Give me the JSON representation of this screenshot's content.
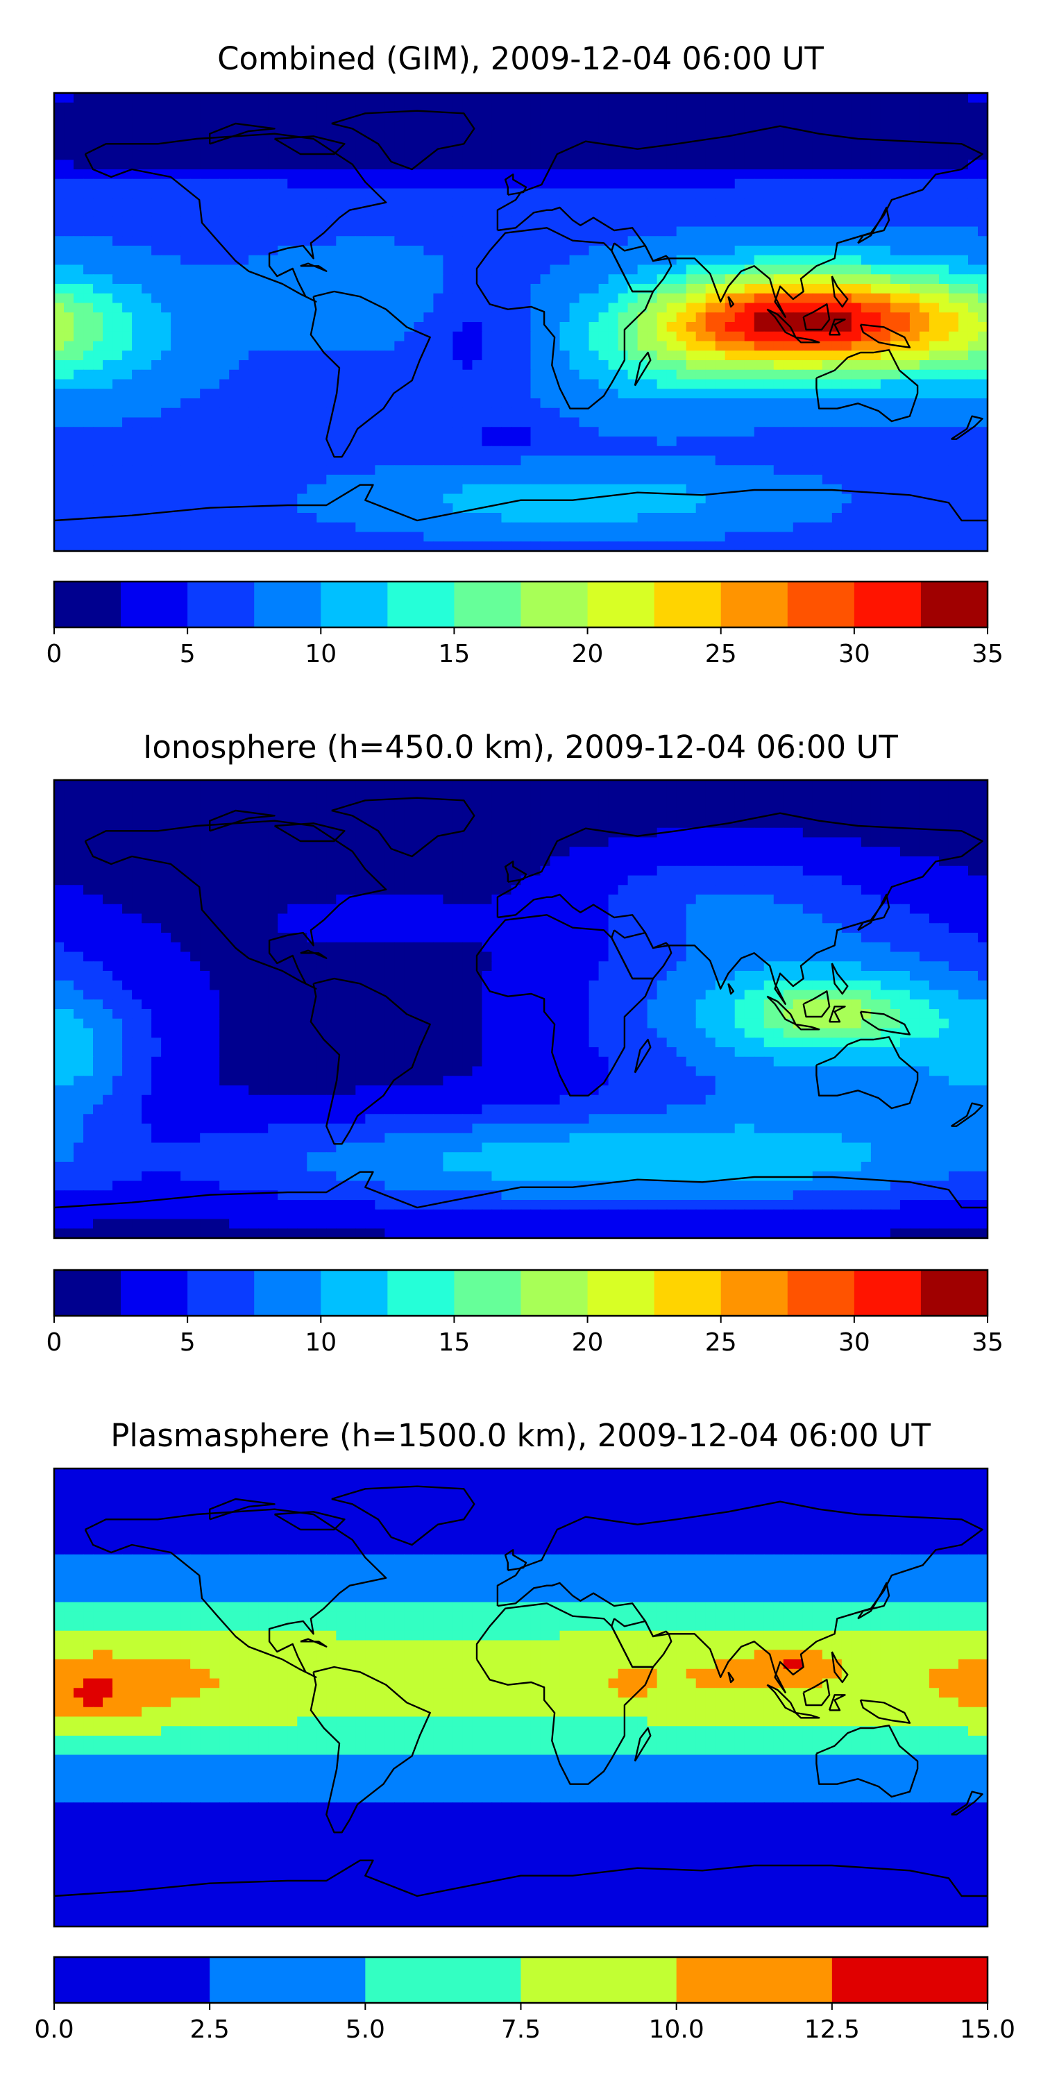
{
  "chart_data": [
    {
      "type": "heatmap",
      "title": "Combined (GIM), 2009-12-04 06:00 UT",
      "colorbar": {
        "levels": [
          0,
          2.5,
          5,
          7.5,
          10,
          12.5,
          15,
          17.5,
          20,
          22.5,
          25,
          27.5,
          30,
          32.5,
          35
        ],
        "tick_values": [
          0,
          5,
          10,
          15,
          20,
          25,
          30,
          35
        ],
        "tick_labels": [
          "0",
          "5",
          "10",
          "15",
          "20",
          "25",
          "30",
          "35"
        ],
        "colors": [
          "#00008f",
          "#0000f2",
          "#0a3cff",
          "#0080ff",
          "#00c0ff",
          "#25ffd8",
          "#66ff99",
          "#a8ff57",
          "#d8ff25",
          "#ffd400",
          "#ff9400",
          "#ff5300",
          "#ff1400",
          "#a00000"
        ]
      },
      "field": {
        "background": 7,
        "blobs": [
          {
            "lon": 122,
            "lat": 0,
            "slon": 38,
            "slat": 14,
            "amp": 22
          },
          {
            "lon": 85,
            "lat": 2,
            "slon": 30,
            "slat": 13,
            "amp": 8
          },
          {
            "lon": 55,
            "lat": -10,
            "slon": 28,
            "slat": 16,
            "amp": 6
          },
          {
            "lon": -175,
            "lat": -5,
            "slon": 30,
            "slat": 16,
            "amp": 6
          },
          {
            "lon": -60,
            "lat": 10,
            "slon": 28,
            "slat": 12,
            "amp": 3
          },
          {
            "lon": -20,
            "lat": -5,
            "slon": 14,
            "slat": 16,
            "amp": -3
          },
          {
            "lon": 20,
            "lat": -70,
            "slon": 50,
            "slat": 8,
            "amp": 5
          },
          {
            "lon": -5,
            "lat": -45,
            "slon": 10,
            "slat": 4,
            "amp": -4
          },
          {
            "lon": 0,
            "lat": 75,
            "slon": 400,
            "slat": 12,
            "amp": -9
          }
        ]
      }
    },
    {
      "type": "heatmap",
      "title": "Ionosphere  (h=450.0 km), 2009-12-04 06:00 UT",
      "colorbar": {
        "levels": [
          0,
          2.5,
          5,
          7.5,
          10,
          12.5,
          15,
          17.5,
          20,
          22.5,
          25,
          27.5,
          30,
          32.5,
          35
        ],
        "tick_values": [
          0,
          5,
          10,
          15,
          20,
          25,
          30,
          35
        ],
        "tick_labels": [
          "0",
          "5",
          "10",
          "15",
          "20",
          "25",
          "30",
          "35"
        ],
        "colors": [
          "#00008f",
          "#0000f2",
          "#0a3cff",
          "#0080ff",
          "#00c0ff",
          "#25ffd8",
          "#66ff99",
          "#a8ff57",
          "#d8ff25",
          "#ffd400",
          "#ff9400",
          "#ff5300",
          "#ff1400",
          "#a00000"
        ]
      },
      "field": {
        "background": 1.5,
        "blobs": [
          {
            "lon": 112,
            "lat": -2,
            "slon": 60,
            "slat": 28,
            "amp": 10
          },
          {
            "lon": 120,
            "lat": -2,
            "slon": 24,
            "slat": 9,
            "amp": 8
          },
          {
            "lon": 40,
            "lat": -60,
            "slon": 120,
            "slat": 14,
            "amp": 10
          },
          {
            "lon": 75,
            "lat": 45,
            "slon": 40,
            "slat": 14,
            "amp": 4
          },
          {
            "lon": -175,
            "lat": -20,
            "slon": 22,
            "slat": 18,
            "amp": 6
          },
          {
            "lon": -55,
            "lat": 35,
            "slon": 25,
            "slat": 6,
            "amp": 3
          }
        ]
      }
    },
    {
      "type": "heatmap",
      "title": "Plasmasphere (h=1500.0 km), 2009-12-04 06:00 UT",
      "colorbar": {
        "levels": [
          0,
          2.5,
          5,
          7.5,
          10,
          12.5,
          15
        ],
        "tick_values": [
          0,
          2.5,
          5,
          7.5,
          10,
          12.5,
          15
        ],
        "tick_labels": [
          "0.0",
          "2.5",
          "5.0",
          "7.5",
          "10.0",
          "12.5",
          "15.0"
        ],
        "colors": [
          "#0000e0",
          "#0080ff",
          "#33ffc2",
          "#c2ff33",
          "#ff9400",
          "#e00000"
        ]
      },
      "field": {
        "background": 1.2,
        "blobs": [
          {
            "lon": 0,
            "lat": 8,
            "slon": 2000,
            "slat": 26,
            "amp": 7.6
          },
          {
            "lon": -160,
            "lat": 5,
            "slon": 40,
            "slat": 14,
            "amp": 2.2
          },
          {
            "lon": 80,
            "lat": 10,
            "slon": 30,
            "slat": 12,
            "amp": 1.4
          },
          {
            "lon": -165,
            "lat": 0,
            "slon": 12,
            "slat": 7,
            "amp": 2.5
          },
          {
            "lon": 43,
            "lat": 5,
            "slon": 5,
            "slat": 4,
            "amp": 2.7
          },
          {
            "lon": 105,
            "lat": 13,
            "slon": 10,
            "slat": 4,
            "amp": 3
          }
        ]
      }
    }
  ]
}
